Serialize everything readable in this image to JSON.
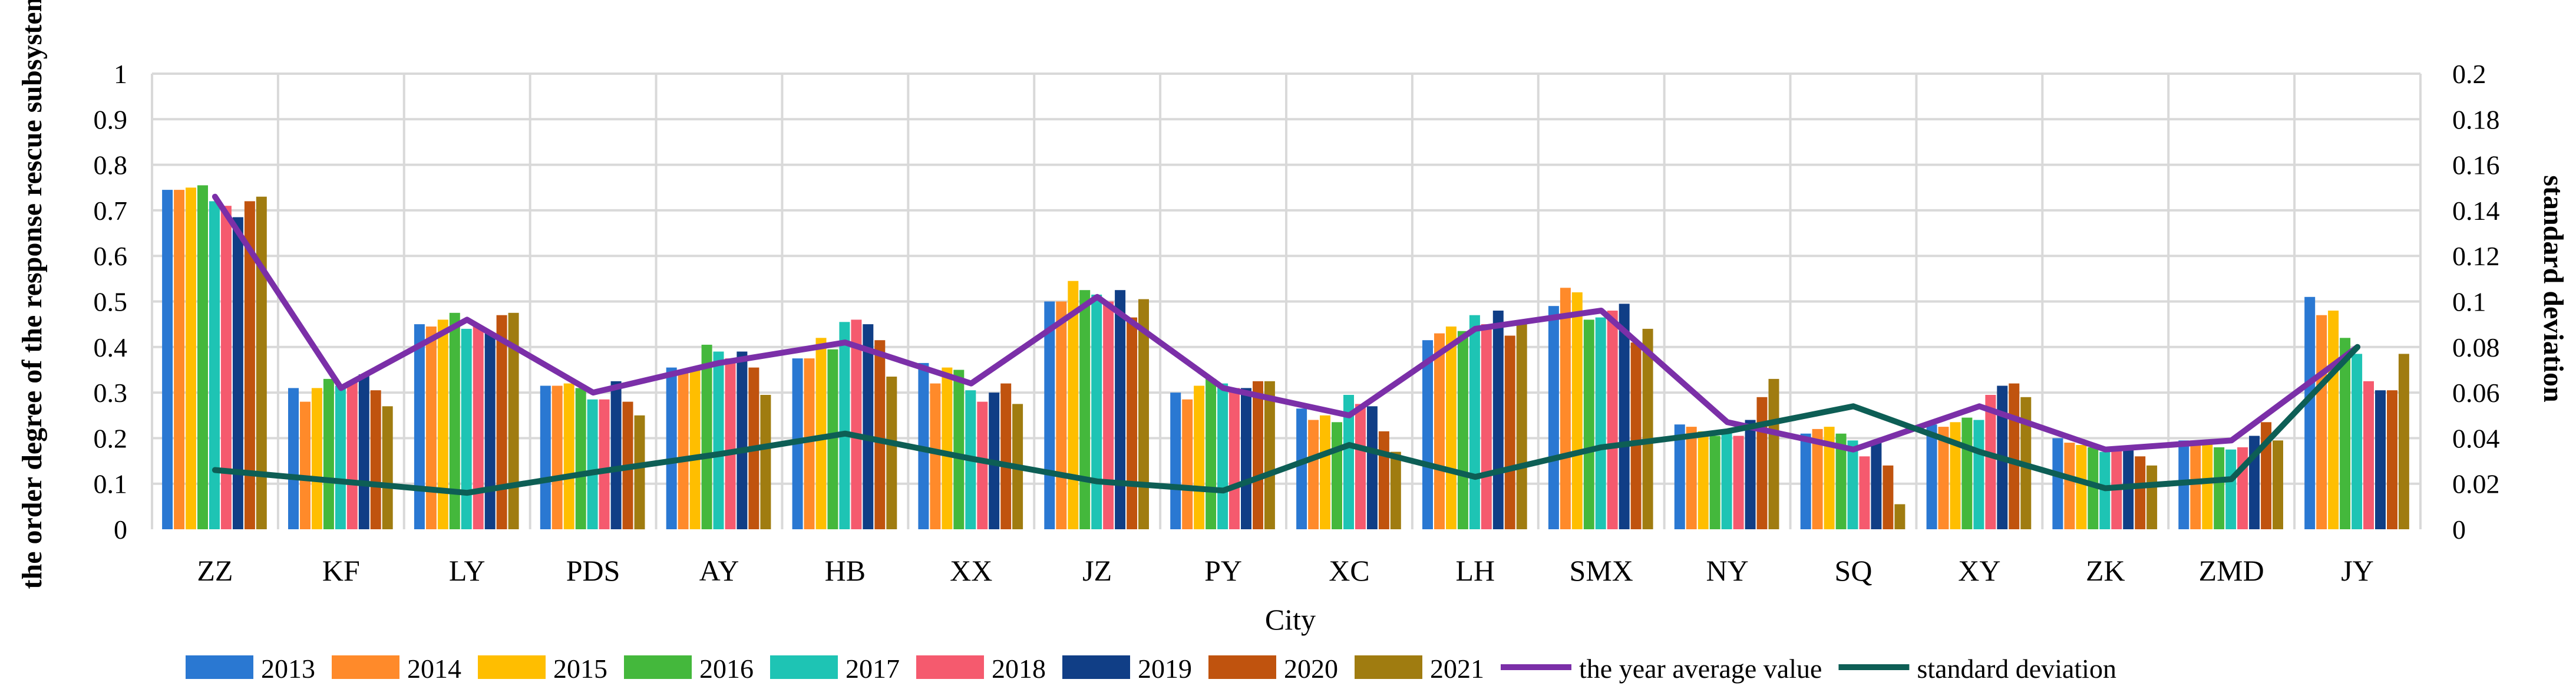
{
  "chart_data": {
    "type": "bar",
    "title": "",
    "xlabel": "City",
    "ylabel": "the order degree of the response rescue subsystem",
    "y2label": "standard deviation",
    "ylim": [
      0,
      1
    ],
    "y2lim": [
      0,
      0.2
    ],
    "yticks": [
      "0",
      "0.1",
      "0.2",
      "0.3",
      "0.4",
      "0.5",
      "0.6",
      "0.7",
      "0.8",
      "0.9",
      "1"
    ],
    "y2ticks": [
      "0",
      "0.02",
      "0.04",
      "0.06",
      "0.08",
      "0.1",
      "0.12",
      "0.14",
      "0.16",
      "0.18",
      "0.2"
    ],
    "grid": true,
    "legend_position": "bottom",
    "categories": [
      "ZZ",
      "KF",
      "LY",
      "PDS",
      "AY",
      "HB",
      "XX",
      "JZ",
      "PY",
      "XC",
      "LH",
      "SMX",
      "NY",
      "SQ",
      "XY",
      "ZK",
      "ZMD",
      "JY"
    ],
    "series": [
      {
        "name": "2013",
        "color": "#2a78d2",
        "values": [
          0.745,
          0.31,
          0.45,
          0.315,
          0.355,
          0.375,
          0.365,
          0.5,
          0.3,
          0.265,
          0.415,
          0.49,
          0.23,
          0.21,
          0.23,
          0.2,
          0.195,
          0.51
        ]
      },
      {
        "name": "2014",
        "color": "#ff8a2a",
        "values": [
          0.745,
          0.28,
          0.445,
          0.315,
          0.35,
          0.375,
          0.32,
          0.5,
          0.285,
          0.24,
          0.43,
          0.53,
          0.225,
          0.22,
          0.225,
          0.19,
          0.195,
          0.47
        ]
      },
      {
        "name": "2015",
        "color": "#ffbe00",
        "values": [
          0.75,
          0.31,
          0.46,
          0.32,
          0.355,
          0.42,
          0.355,
          0.545,
          0.315,
          0.25,
          0.445,
          0.52,
          0.215,
          0.225,
          0.235,
          0.185,
          0.195,
          0.48
        ]
      },
      {
        "name": "2016",
        "color": "#44b83c",
        "values": [
          0.755,
          0.33,
          0.475,
          0.31,
          0.405,
          0.395,
          0.35,
          0.525,
          0.33,
          0.235,
          0.435,
          0.46,
          0.205,
          0.21,
          0.245,
          0.18,
          0.18,
          0.42
        ]
      },
      {
        "name": "2017",
        "color": "#1ec4b4",
        "values": [
          0.72,
          0.315,
          0.44,
          0.285,
          0.39,
          0.455,
          0.305,
          0.515,
          0.32,
          0.295,
          0.47,
          0.465,
          0.215,
          0.195,
          0.24,
          0.17,
          0.175,
          0.385
        ]
      },
      {
        "name": "2018",
        "color": "#f55a6e",
        "values": [
          0.71,
          0.325,
          0.445,
          0.285,
          0.375,
          0.46,
          0.28,
          0.5,
          0.31,
          0.275,
          0.45,
          0.48,
          0.205,
          0.16,
          0.295,
          0.175,
          0.18,
          0.325
        ]
      },
      {
        "name": "2019",
        "color": "#103e86",
        "values": [
          0.685,
          0.34,
          0.43,
          0.325,
          0.39,
          0.45,
          0.3,
          0.525,
          0.31,
          0.27,
          0.48,
          0.495,
          0.24,
          0.195,
          0.315,
          0.175,
          0.205,
          0.305
        ]
      },
      {
        "name": "2020",
        "color": "#c0530e",
        "values": [
          0.72,
          0.305,
          0.47,
          0.28,
          0.355,
          0.415,
          0.32,
          0.465,
          0.325,
          0.215,
          0.425,
          0.41,
          0.29,
          0.14,
          0.32,
          0.16,
          0.235,
          0.305
        ]
      },
      {
        "name": "2021",
        "color": "#a07c10",
        "values": [
          0.73,
          0.27,
          0.475,
          0.25,
          0.295,
          0.335,
          0.275,
          0.505,
          0.325,
          0.17,
          0.45,
          0.44,
          0.33,
          0.055,
          0.29,
          0.14,
          0.195,
          0.385
        ]
      }
    ],
    "line_series": [
      {
        "name": "the year average value",
        "axis": "left",
        "color": "#7b2fa8",
        "values": [
          0.73,
          0.31,
          0.46,
          0.3,
          0.365,
          0.41,
          0.32,
          0.51,
          0.31,
          0.25,
          0.44,
          0.48,
          0.235,
          0.175,
          0.27,
          0.175,
          0.195,
          0.4
        ]
      },
      {
        "name": "standard deviation",
        "axis": "right",
        "color": "#0d5e55",
        "values": [
          0.026,
          0.021,
          0.016,
          0.025,
          0.033,
          0.042,
          0.031,
          0.021,
          0.017,
          0.037,
          0.023,
          0.036,
          0.043,
          0.054,
          0.034,
          0.018,
          0.022,
          0.08
        ]
      }
    ]
  }
}
